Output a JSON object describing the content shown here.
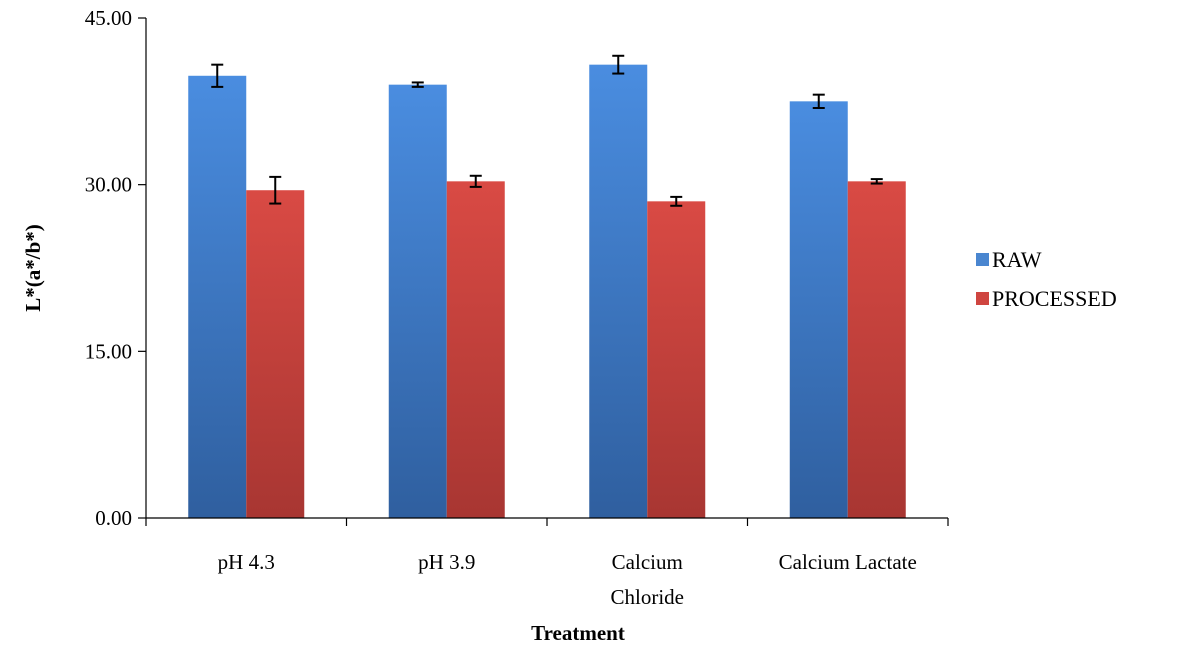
{
  "chart_data": {
    "type": "bar",
    "categories": [
      [
        "pH 4.3"
      ],
      [
        "pH 3.9"
      ],
      [
        "Calcium",
        "Chloride"
      ],
      [
        "Calcium Lactate"
      ]
    ],
    "series": [
      {
        "name": "RAW",
        "color": "#4a86d0",
        "values": [
          39.8,
          39.0,
          40.8,
          37.5
        ],
        "errors": [
          1.0,
          0.2,
          0.8,
          0.6
        ]
      },
      {
        "name": "PROCESSED",
        "color": "#cf4540",
        "values": [
          29.5,
          30.3,
          28.5,
          30.3
        ],
        "errors": [
          1.2,
          0.5,
          0.4,
          0.2
        ]
      }
    ],
    "yticks": [
      "0.00",
      "15.00",
      "30.00",
      "45.00"
    ],
    "ylim": [
      0,
      45
    ],
    "xlabel": "Treatment",
    "ylabel": "L*(a*/b*)",
    "legend_position": "right",
    "grid": false
  }
}
